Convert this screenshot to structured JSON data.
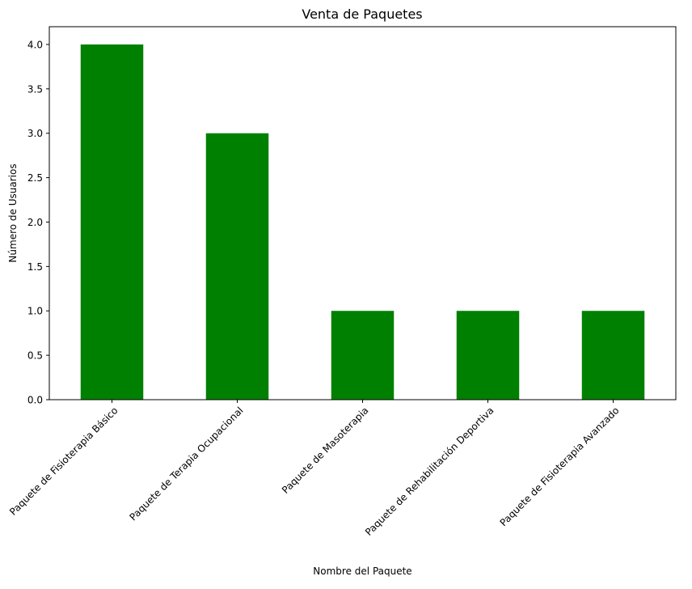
{
  "chart_data": {
    "type": "bar",
    "title": "Venta de Paquetes",
    "xlabel": "Nombre del Paquete",
    "ylabel": "Número de Usuarios",
    "categories": [
      "Paquete de Fisioterapia Básico",
      "Paquete de Terapia Ocupacional",
      "Paquete de Masoterapia",
      "Paquete de Rehabilitación Deportiva",
      "Paquete de Fisioterapia Avanzado"
    ],
    "values": [
      4,
      3,
      1,
      1,
      1
    ],
    "ylim": [
      0,
      4.2
    ],
    "yticks": [
      "0.0",
      "0.5",
      "1.0",
      "1.5",
      "2.0",
      "2.5",
      "3.0",
      "3.5",
      "4.0"
    ],
    "bar_color": "#008000",
    "grid": false,
    "legend": "none"
  }
}
